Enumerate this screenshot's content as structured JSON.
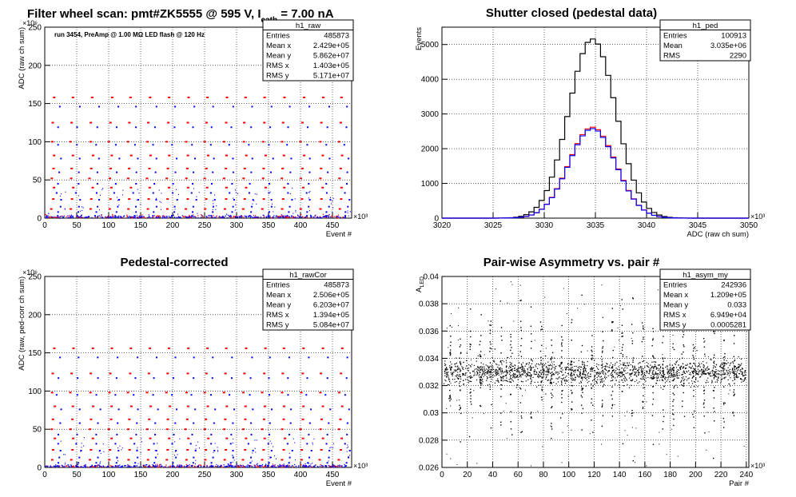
{
  "page_title": {
    "prefix": "Filter wheel scan: pmt#ZK5555 @   595 V, I",
    "subscript": "cath",
    "suffix": " = 7.00 nA"
  },
  "chart_data": [
    {
      "id": "raw",
      "type": "scatter",
      "title": "",
      "annotation": "run 3454, PreAmp @ 1.00 MΩ   LED flash @  120 Hz",
      "xlabel": "Event #",
      "ylabel": "ADC (raw ch sum)",
      "x_multiplier": "×10³",
      "y_multiplier": "×10⁶",
      "xlim": [
        0,
        480
      ],
      "ylim": [
        0,
        250
      ],
      "xticks": [
        0,
        50,
        100,
        150,
        200,
        250,
        300,
        350,
        400,
        450
      ],
      "yticks": [
        0,
        50,
        100,
        150,
        200,
        250
      ],
      "grid": true,
      "levels_blue": [
        3,
        8,
        15,
        24,
        33,
        45,
        60,
        78,
        96,
        119,
        146
      ],
      "levels_red": [
        12,
        25,
        40,
        52,
        65,
        82,
        100,
        125,
        158
      ],
      "stats": {
        "name": "h1_raw",
        "rows": [
          [
            "Entries",
            "485873"
          ],
          [
            "Mean x",
            "2.429e+05"
          ],
          [
            "Mean y",
            "5.862e+07"
          ],
          [
            "RMS x",
            "1.403e+05"
          ],
          [
            "RMS y",
            "5.171e+07"
          ]
        ]
      }
    },
    {
      "id": "ped",
      "type": "line",
      "title": "Shutter closed (pedestal data)",
      "xlabel": "ADC (raw ch sum)",
      "ylabel": "Events",
      "x_multiplier": "×10³",
      "xlim": [
        3020,
        3050
      ],
      "ylim": [
        0,
        5500
      ],
      "xticks": [
        3020,
        3025,
        3030,
        3035,
        3040,
        3045,
        3050
      ],
      "yticks": [
        0,
        1000,
        2000,
        3000,
        4000,
        5000
      ],
      "grid": true,
      "series": [
        {
          "color": "#000000",
          "mean": 3034.7,
          "sigma": 2.3,
          "peak": 5160
        },
        {
          "color": "#ff0000",
          "mean": 3034.7,
          "sigma": 2.3,
          "peak": 2620
        },
        {
          "color": "#0000ff",
          "mean": 3034.7,
          "sigma": 2.3,
          "peak": 2580
        }
      ],
      "stats": {
        "name": "h1_ped",
        "rows": [
          [
            "Entries",
            "100913"
          ],
          [
            "Mean",
            "3.035e+06"
          ],
          [
            "RMS",
            "2290"
          ]
        ]
      }
    },
    {
      "id": "rawcor",
      "type": "scatter",
      "title": "Pedestal-corrected",
      "xlabel": "Event #",
      "ylabel": "ADC (raw, ped-corr ch sum)",
      "x_multiplier": "×10³",
      "y_multiplier": "×10⁶",
      "xlim": [
        0,
        480
      ],
      "ylim": [
        0,
        250
      ],
      "xticks": [
        0,
        50,
        100,
        150,
        200,
        250,
        300,
        350,
        400,
        450
      ],
      "yticks": [
        0,
        50,
        100,
        150,
        200,
        250
      ],
      "grid": true,
      "levels_blue": [
        2,
        6,
        13,
        22,
        31,
        43,
        58,
        76,
        95,
        117,
        144
      ],
      "levels_red": [
        10,
        23,
        38,
        50,
        63,
        80,
        98,
        123,
        156
      ],
      "stats": {
        "name": "h1_rawCor",
        "rows": [
          [
            "Entries",
            "485873"
          ],
          [
            "Mean x",
            "2.506e+05"
          ],
          [
            "Mean y",
            "6.203e+07"
          ],
          [
            "RMS x",
            "1.394e+05"
          ],
          [
            "RMS y",
            "5.084e+07"
          ]
        ]
      }
    },
    {
      "id": "asym",
      "type": "scatter",
      "title": "Pair-wise Asymmetry vs. pair #",
      "xlabel": "Pair #",
      "ylabel": "A",
      "ylabel_sub": "LED",
      "x_multiplier": "×10³",
      "xlim": [
        0,
        242
      ],
      "ylim": [
        0.026,
        0.04
      ],
      "xticks": [
        0,
        20,
        40,
        60,
        80,
        100,
        120,
        140,
        160,
        180,
        200,
        220,
        240
      ],
      "yticks": [
        0.026,
        0.028,
        0.03,
        0.032,
        0.034,
        0.036,
        0.038,
        0.04
      ],
      "grid": true,
      "band_center": 0.033,
      "band_halfwidth": 0.0006,
      "spike_x": [
        6,
        14,
        22,
        30,
        38,
        46,
        54,
        62,
        70,
        78,
        86,
        94,
        102,
        110,
        118,
        126,
        134,
        142,
        150,
        158,
        166,
        174,
        182,
        190,
        198,
        206,
        214,
        222,
        230
      ],
      "stats": {
        "name": "h1_asym_my",
        "rows": [
          [
            "Entries",
            "242936"
          ],
          [
            "Mean x",
            "1.209e+05"
          ],
          [
            "Mean y",
            "0.033"
          ],
          [
            "RMS x",
            "6.949e+04"
          ],
          [
            "RMS y",
            "0.0005281"
          ]
        ]
      }
    }
  ]
}
